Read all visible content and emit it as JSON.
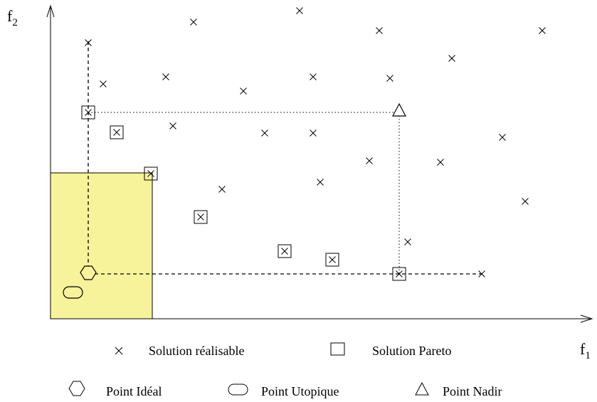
{
  "axes": {
    "x_label": "f",
    "x_subscript": "1",
    "y_label": "f",
    "y_subscript": "2"
  },
  "legend": {
    "feasible": "Solution réalisable",
    "pareto": "Solution Pareto",
    "ideal": "Point Idéal",
    "utopia": "Point Utopique",
    "nadir": "Point Nadir"
  },
  "colors": {
    "dominated_region": "#f7f39a",
    "dominated_region_border": "#000000"
  },
  "icons": {
    "feasible": "cross-icon",
    "pareto": "square-icon",
    "ideal": "hexagon-icon",
    "utopia": "oval-icon",
    "nadir": "triangle-icon"
  }
}
